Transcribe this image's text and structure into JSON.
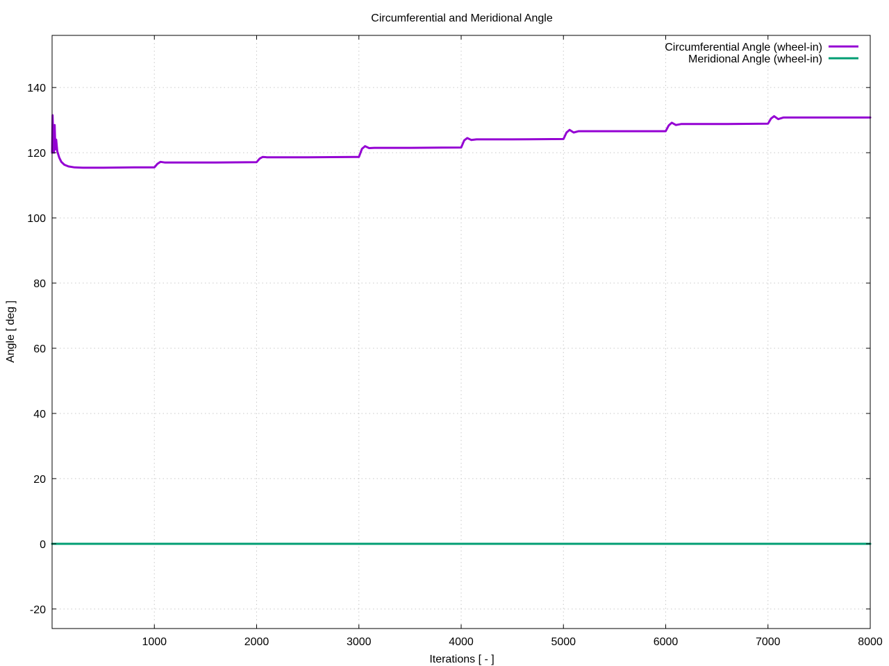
{
  "chart_data": {
    "type": "line",
    "title": "Circumferential and Meridional Angle",
    "xlabel": "Iterations [ - ]",
    "ylabel": "Angle [ deg ]",
    "xlim": [
      0,
      8000
    ],
    "ylim": [
      -26,
      156
    ],
    "xticks": [
      1000,
      2000,
      3000,
      4000,
      5000,
      6000,
      7000,
      8000
    ],
    "yticks": [
      -20,
      0,
      20,
      40,
      60,
      80,
      100,
      120,
      140
    ],
    "grid": true,
    "legend_position": "top-right",
    "series": [
      {
        "name": "Circumferential Angle (wheel-in)",
        "color": "#9400d3",
        "points": [
          [
            0,
            120
          ],
          [
            5,
            131.5
          ],
          [
            10,
            126
          ],
          [
            18,
            120
          ],
          [
            25,
            128.5
          ],
          [
            32,
            121
          ],
          [
            40,
            124
          ],
          [
            50,
            120.5
          ],
          [
            70,
            118.5
          ],
          [
            90,
            117.2
          ],
          [
            120,
            116.3
          ],
          [
            160,
            115.8
          ],
          [
            220,
            115.5
          ],
          [
            300,
            115.4
          ],
          [
            500,
            115.4
          ],
          [
            800,
            115.5
          ],
          [
            1000,
            115.5
          ],
          [
            1030,
            116.6
          ],
          [
            1060,
            117.2
          ],
          [
            1100,
            117.0
          ],
          [
            1200,
            117.0
          ],
          [
            1600,
            117.0
          ],
          [
            2000,
            117.1
          ],
          [
            2030,
            118.2
          ],
          [
            2060,
            118.7
          ],
          [
            2100,
            118.6
          ],
          [
            2500,
            118.6
          ],
          [
            3000,
            118.7
          ],
          [
            3030,
            121.2
          ],
          [
            3060,
            122.0
          ],
          [
            3100,
            121.4
          ],
          [
            3150,
            121.5
          ],
          [
            3500,
            121.5
          ],
          [
            4000,
            121.6
          ],
          [
            4030,
            123.8
          ],
          [
            4060,
            124.5
          ],
          [
            4100,
            123.9
          ],
          [
            4150,
            124.1
          ],
          [
            4500,
            124.1
          ],
          [
            5000,
            124.2
          ],
          [
            5030,
            126.2
          ],
          [
            5060,
            127.0
          ],
          [
            5100,
            126.2
          ],
          [
            5150,
            126.6
          ],
          [
            5600,
            126.6
          ],
          [
            6000,
            126.6
          ],
          [
            6030,
            128.4
          ],
          [
            6060,
            129.2
          ],
          [
            6100,
            128.5
          ],
          [
            6150,
            128.8
          ],
          [
            6600,
            128.8
          ],
          [
            7000,
            128.9
          ],
          [
            7030,
            130.5
          ],
          [
            7060,
            131.2
          ],
          [
            7100,
            130.3
          ],
          [
            7150,
            130.8
          ],
          [
            7500,
            130.8
          ],
          [
            8000,
            130.8
          ]
        ]
      },
      {
        "name": "Meridional Angle (wheel-in)",
        "color": "#009e73",
        "points": [
          [
            0,
            0
          ],
          [
            8000,
            0
          ]
        ]
      }
    ]
  }
}
